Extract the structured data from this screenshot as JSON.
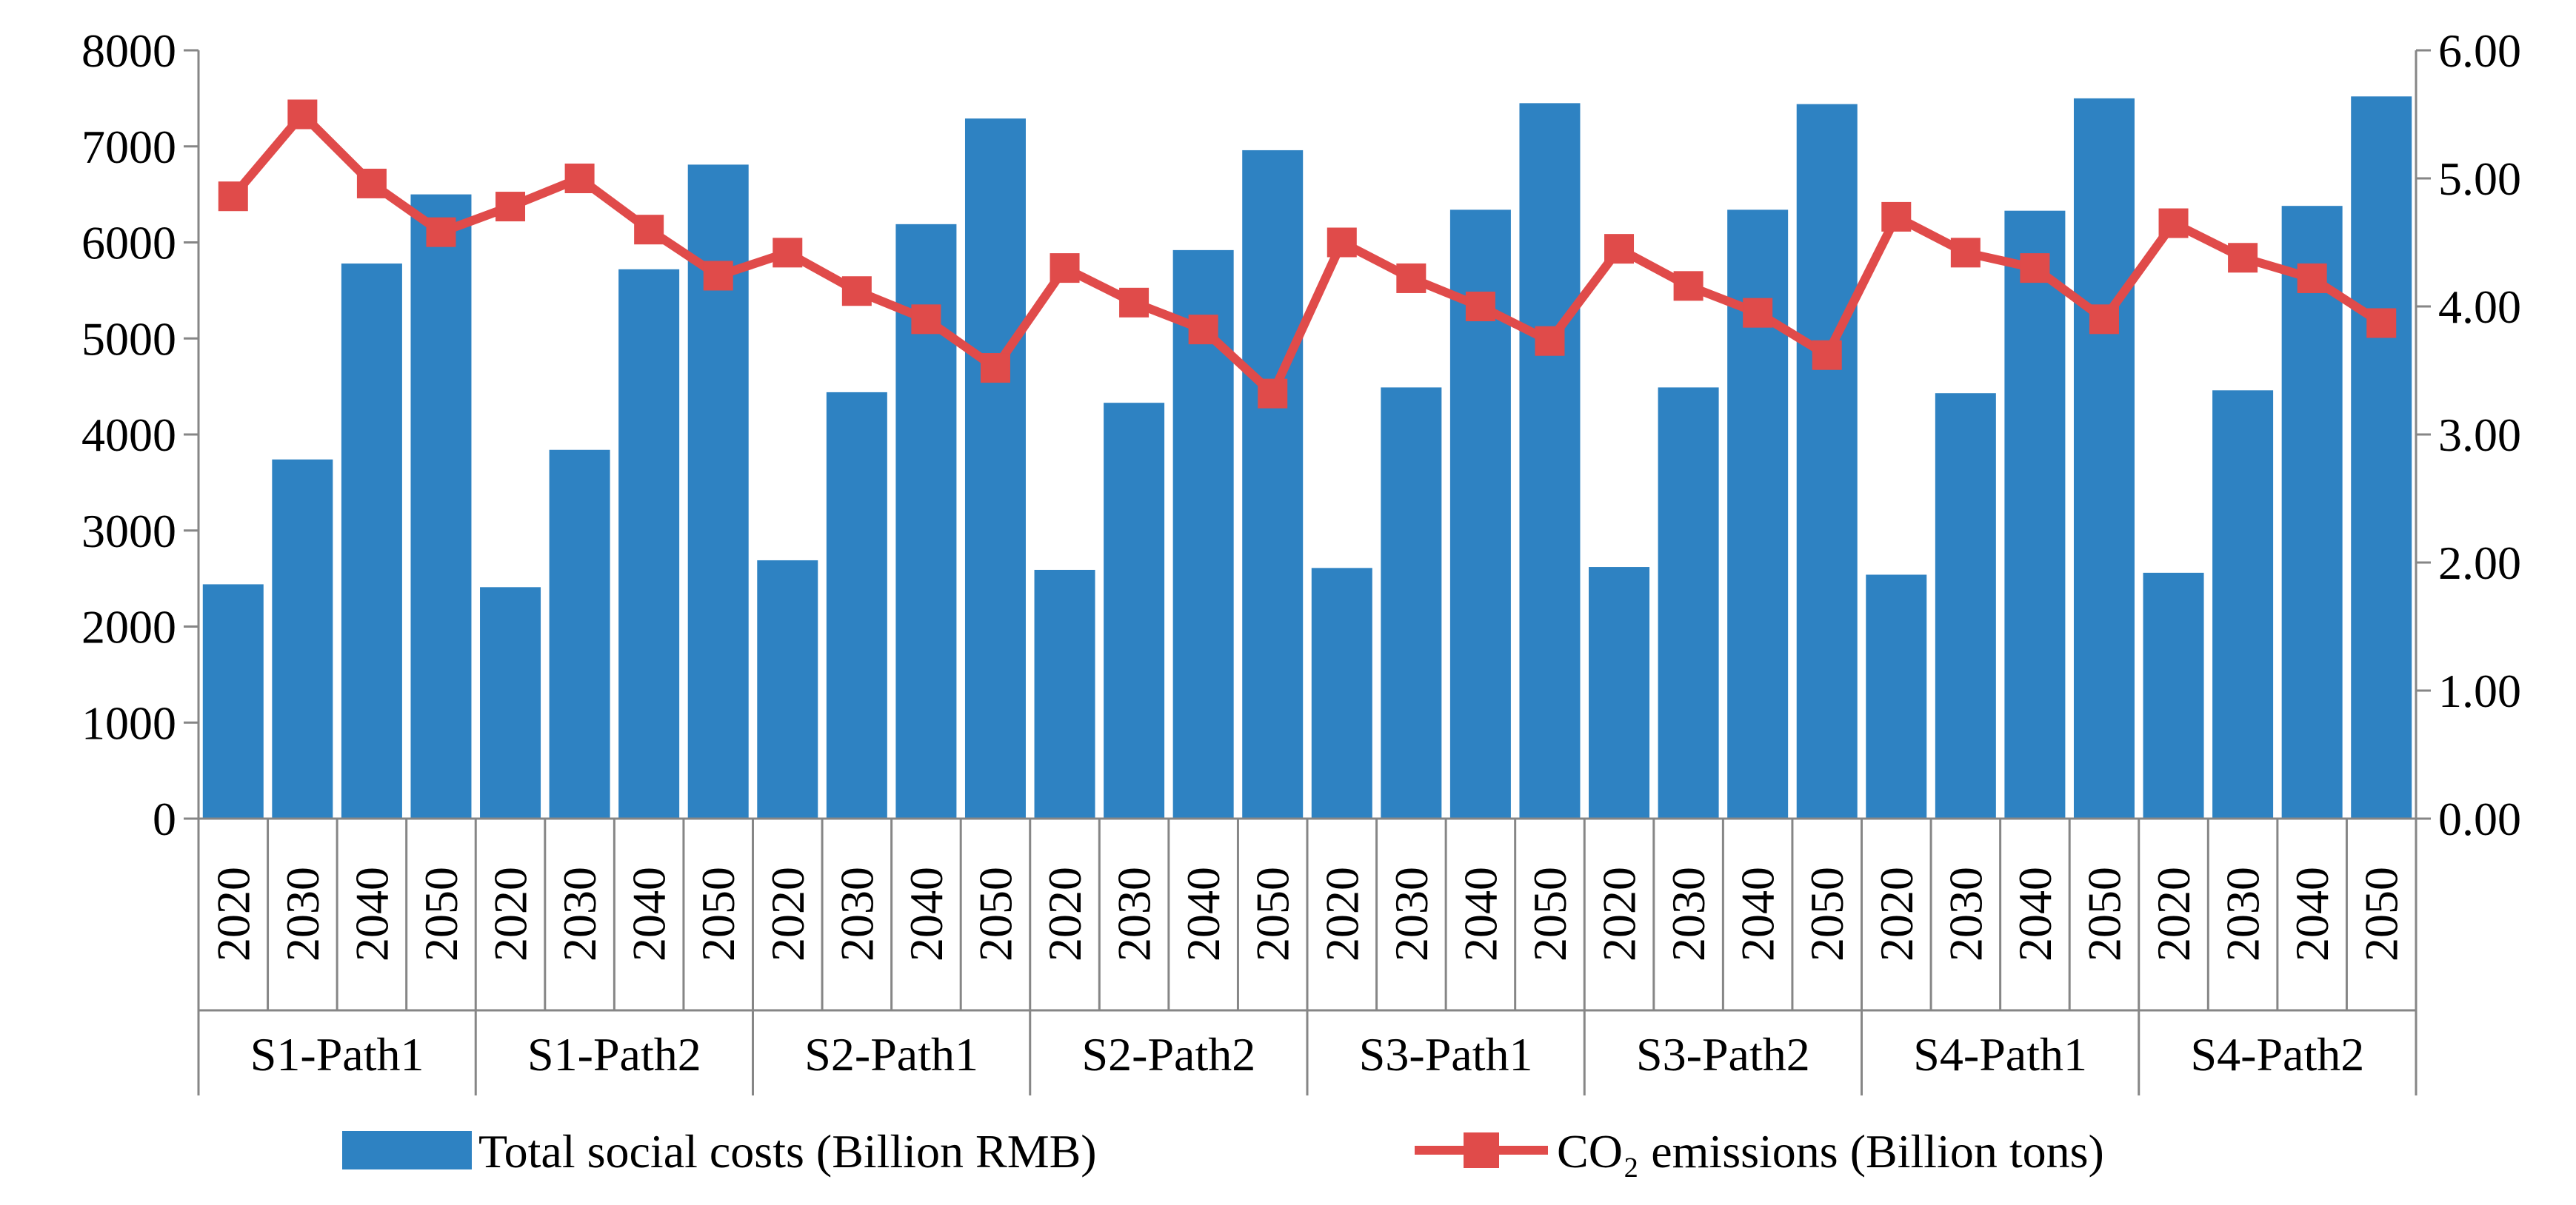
{
  "chart_data": {
    "type": "bar",
    "title": "",
    "groups": [
      "S1-Path1",
      "S1-Path2",
      "S2-Path1",
      "S2-Path2",
      "S3-Path1",
      "S3-Path2",
      "S4-Path1",
      "S4-Path2"
    ],
    "years": [
      "2020",
      "2030",
      "2040",
      "2050"
    ],
    "left_axis": {
      "ylim": [
        0,
        8000
      ],
      "ticks": [
        "0",
        "1000",
        "2000",
        "3000",
        "4000",
        "5000",
        "6000",
        "7000",
        "8000"
      ]
    },
    "right_axis": {
      "ylim": [
        0,
        6
      ],
      "ticks": [
        "0.00",
        "1.00",
        "2.00",
        "3.00",
        "4.00",
        "5.00",
        "6.00"
      ]
    },
    "series": [
      {
        "name": "Total social costs (Billion RMB)",
        "type": "bar",
        "axis": "left",
        "color": "#2E82C2",
        "values": [
          2440,
          3740,
          5780,
          6500,
          2410,
          3840,
          5720,
          6810,
          2690,
          4440,
          6190,
          7290,
          2590,
          4330,
          5920,
          6960,
          2610,
          4490,
          6340,
          7450,
          2620,
          4490,
          6340,
          7440,
          2540,
          4430,
          6330,
          7500,
          2560,
          4460,
          6380,
          7520
        ]
      },
      {
        "name": "CO₂ emissions (Billion tons)",
        "type": "line",
        "axis": "right",
        "color": "#E04B4A",
        "values": [
          4.86,
          5.5,
          4.96,
          4.58,
          4.78,
          5.0,
          4.6,
          4.24,
          4.42,
          4.12,
          3.9,
          3.52,
          4.3,
          4.03,
          3.82,
          3.32,
          4.5,
          4.22,
          4.0,
          3.73,
          4.45,
          4.16,
          3.95,
          3.62,
          4.7,
          4.42,
          4.3,
          3.9,
          4.65,
          4.38,
          4.22,
          3.87
        ]
      }
    ],
    "legend_position": "bottom",
    "grid": false
  }
}
